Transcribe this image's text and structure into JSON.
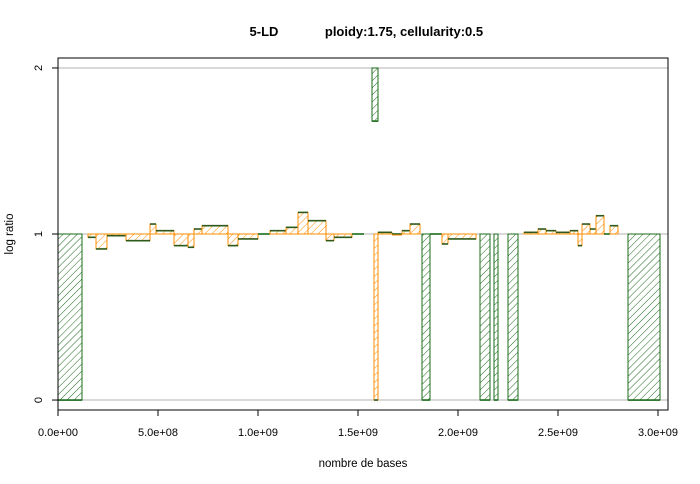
{
  "chart_data": {
    "type": "bar",
    "title_left": "5-LD",
    "title_right": "ploidy:1.75, cellularity:0.5",
    "xlabel": "nombre de bases",
    "ylabel": "log ratio",
    "xlim": [
      0,
      3050000000
    ],
    "ylim": [
      -0.06,
      2.06
    ],
    "xticks": [
      0,
      500000000,
      1000000000,
      1500000000,
      2000000000,
      2500000000,
      3000000000
    ],
    "xtick_labels": [
      "0.0e+00",
      "5.0e+08",
      "1.0e+09",
      "1.5e+09",
      "2.0e+09",
      "2.5e+09",
      "3.0e+09"
    ],
    "yticks": [
      0,
      1,
      2
    ],
    "ytick_labels": [
      "0",
      "1",
      "2"
    ],
    "grid_y": [
      0,
      1,
      2
    ],
    "colors": {
      "grid": "#b3b3b3",
      "orange": "#ff8c00",
      "green": "#1a6b1a",
      "line": "#444444"
    },
    "segments": [
      {
        "x0": 0,
        "x1": 120000000,
        "y": 0.0,
        "color": "green"
      },
      {
        "x0": 150000000,
        "x1": 190000000,
        "y": 0.98,
        "color": "orange"
      },
      {
        "x0": 190000000,
        "x1": 245000000,
        "y": 0.91,
        "color": "orange"
      },
      {
        "x0": 245000000,
        "x1": 340000000,
        "y": 0.99,
        "color": "orange"
      },
      {
        "x0": 340000000,
        "x1": 460000000,
        "y": 0.96,
        "color": "orange"
      },
      {
        "x0": 460000000,
        "x1": 490000000,
        "y": 1.06,
        "color": "orange"
      },
      {
        "x0": 490000000,
        "x1": 580000000,
        "y": 1.02,
        "color": "orange"
      },
      {
        "x0": 580000000,
        "x1": 650000000,
        "y": 0.93,
        "color": "orange"
      },
      {
        "x0": 650000000,
        "x1": 680000000,
        "y": 0.92,
        "color": "orange"
      },
      {
        "x0": 680000000,
        "x1": 720000000,
        "y": 1.03,
        "color": "orange"
      },
      {
        "x0": 720000000,
        "x1": 850000000,
        "y": 1.05,
        "color": "orange"
      },
      {
        "x0": 850000000,
        "x1": 900000000,
        "y": 0.93,
        "color": "orange"
      },
      {
        "x0": 900000000,
        "x1": 1000000000,
        "y": 0.97,
        "color": "orange"
      },
      {
        "x0": 1000000000,
        "x1": 1060000000,
        "y": 1.0,
        "color": "green"
      },
      {
        "x0": 1060000000,
        "x1": 1140000000,
        "y": 1.02,
        "color": "orange"
      },
      {
        "x0": 1140000000,
        "x1": 1200000000,
        "y": 1.04,
        "color": "orange"
      },
      {
        "x0": 1200000000,
        "x1": 1250000000,
        "y": 1.13,
        "color": "orange"
      },
      {
        "x0": 1250000000,
        "x1": 1340000000,
        "y": 1.08,
        "color": "orange"
      },
      {
        "x0": 1340000000,
        "x1": 1380000000,
        "y": 0.96,
        "color": "orange"
      },
      {
        "x0": 1380000000,
        "x1": 1470000000,
        "y": 0.98,
        "color": "orange"
      },
      {
        "x0": 1470000000,
        "x1": 1530000000,
        "y": 1.0,
        "color": "green"
      },
      {
        "x0": 1570000000,
        "x1": 1600000000,
        "y": 1.68,
        "top": 2.0,
        "color": "green"
      },
      {
        "x0": 1600000000,
        "x1": 1670000000,
        "y": 1.01,
        "color": "orange"
      },
      {
        "x0": 1670000000,
        "x1": 1720000000,
        "y": 1.0,
        "color": "orange"
      },
      {
        "x0": 1720000000,
        "x1": 1760000000,
        "y": 1.02,
        "color": "orange"
      },
      {
        "x0": 1760000000,
        "x1": 1810000000,
        "y": 1.06,
        "color": "orange"
      },
      {
        "x0": 1860000000,
        "x1": 1920000000,
        "y": 1.0,
        "color": "green"
      },
      {
        "x0": 1920000000,
        "x1": 1950000000,
        "y": 0.94,
        "color": "orange"
      },
      {
        "x0": 1950000000,
        "x1": 2090000000,
        "y": 0.97,
        "color": "orange"
      },
      {
        "x0": 2330000000,
        "x1": 2400000000,
        "y": 1.01,
        "color": "orange"
      },
      {
        "x0": 2400000000,
        "x1": 2440000000,
        "y": 1.03,
        "color": "orange"
      },
      {
        "x0": 2440000000,
        "x1": 2490000000,
        "y": 1.02,
        "color": "orange"
      },
      {
        "x0": 2490000000,
        "x1": 2560000000,
        "y": 1.01,
        "color": "orange"
      },
      {
        "x0": 2560000000,
        "x1": 2600000000,
        "y": 1.02,
        "color": "orange"
      },
      {
        "x0": 2600000000,
        "x1": 2620000000,
        "y": 0.93,
        "color": "orange"
      },
      {
        "x0": 2620000000,
        "x1": 2660000000,
        "y": 1.06,
        "color": "orange"
      },
      {
        "x0": 2660000000,
        "x1": 2690000000,
        "y": 1.03,
        "color": "orange"
      },
      {
        "x0": 2690000000,
        "x1": 2730000000,
        "y": 1.11,
        "color": "orange"
      },
      {
        "x0": 2730000000,
        "x1": 2760000000,
        "y": 1.0,
        "color": "green"
      },
      {
        "x0": 2760000000,
        "x1": 2800000000,
        "y": 1.05,
        "color": "orange"
      },
      {
        "x0": 1580000000,
        "x1": 1600000000,
        "y": 0.0,
        "color": "orange"
      },
      {
        "x0": 1820000000,
        "x1": 1860000000,
        "y": 0.0,
        "color": "green"
      },
      {
        "x0": 2110000000,
        "x1": 2160000000,
        "y": 0.0,
        "color": "green"
      },
      {
        "x0": 2180000000,
        "x1": 2200000000,
        "y": 0.0,
        "color": "green"
      },
      {
        "x0": 2250000000,
        "x1": 2300000000,
        "y": 0.0,
        "color": "green"
      },
      {
        "x0": 2850000000,
        "x1": 3010000000,
        "y": 0.0,
        "color": "green"
      }
    ]
  }
}
